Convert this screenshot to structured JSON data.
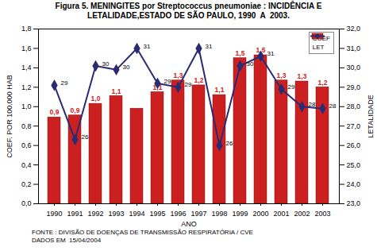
{
  "chart_data": {
    "type": "bar",
    "title": "Figura 5. MENINGITES por Streptococcus pneumoniae : INCIDÊNCIA E LETALIDADE,ESTADO DE SÃO PAULO, 1990  A  2003.",
    "x_label": "ANO",
    "y_label": "COEF. POR 100.000 HAB",
    "y2_label": "LETALIDADE",
    "footer": [
      "FONTE : DIVISÃO DE DOENÇAS DE TRANSMISSÃO RESPIRATÓRIA / CVE",
      "DADOS EM  15/04/2004"
    ],
    "categories": [
      "1990",
      "1991",
      "1992",
      "1993",
      "1994",
      "1995",
      "1996",
      "1997",
      "1998",
      "1999",
      "2000",
      "2001",
      "2002",
      "2003"
    ],
    "series": [
      {
        "name": "COEF",
        "type": "bar",
        "color": "#cc2020",
        "values": [
          0.89,
          0.91,
          1.03,
          1.11,
          0.98,
          1.15,
          1.27,
          1.22,
          1.12,
          1.5,
          1.53,
          1.27,
          1.26,
          1.2
        ],
        "value_labels": [
          "0,9",
          "0,9",
          "1,0",
          "1,1",
          null,
          "1,1",
          "1,3",
          "1,2",
          "1,1",
          "1,5",
          "1,5",
          "1,3",
          "1,3",
          "1,2"
        ]
      },
      {
        "name": "LET",
        "type": "line",
        "axis": "y2",
        "color": "#2b2b73",
        "marker": "diamond",
        "values": [
          29.1,
          26.3,
          30.1,
          29.9,
          31.0,
          29.2,
          29.0,
          31.0,
          26.0,
          30.1,
          30.6,
          28.9,
          28.0,
          27.9
        ],
        "value_labels": [
          "29",
          "26",
          "30",
          "30",
          "31",
          "29",
          "29",
          "31",
          "26",
          "30",
          "31",
          "29",
          "28",
          "28"
        ]
      }
    ],
    "ylim": [
      0,
      1.8
    ],
    "yticks": [
      {
        "value": 0,
        "label": "0,0"
      },
      {
        "value": 0.2,
        "label": "0,2"
      },
      {
        "value": 0.4,
        "label": "0,4"
      },
      {
        "value": 0.6,
        "label": "0,6"
      },
      {
        "value": 0.8,
        "label": "0,8"
      },
      {
        "value": 1.0,
        "label": "1,0"
      },
      {
        "value": 1.2,
        "label": "1,2"
      },
      {
        "value": 1.4,
        "label": "1,4"
      },
      {
        "value": 1.6,
        "label": "1,6"
      },
      {
        "value": 1.8,
        "label": "1,8"
      }
    ],
    "y2lim": [
      23,
      32
    ],
    "y2ticks": [
      {
        "value": 23,
        "label": "23,0"
      },
      {
        "value": 24,
        "label": "24,0"
      },
      {
        "value": 25,
        "label": "25,0"
      },
      {
        "value": 26,
        "label": "26,0"
      },
      {
        "value": 27,
        "label": "27,0"
      },
      {
        "value": 28,
        "label": "28,0"
      },
      {
        "value": 29,
        "label": "29,0"
      },
      {
        "value": 30,
        "label": "30,0"
      },
      {
        "value": 31,
        "label": "31,0"
      },
      {
        "value": 32,
        "label": "32,0"
      }
    ],
    "data_labels": true,
    "legend": "top-right",
    "grid": false
  }
}
